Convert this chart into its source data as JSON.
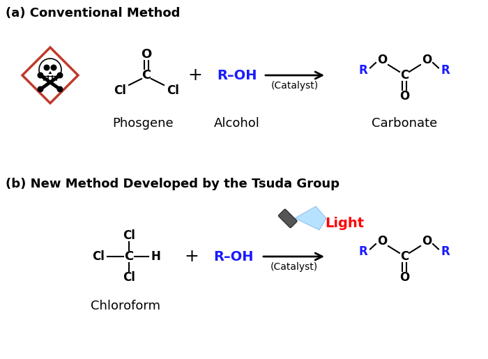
{
  "bg_color": "#ffffff",
  "title_a": "(a) Conventional Method",
  "title_b": "(b) New Method Developed by the Tsuda Group",
  "label_phosgene": "Phosgene",
  "label_alcohol": "Alcohol",
  "label_carbonate": "Carbonate",
  "label_chloroform": "Chloroform",
  "label_roh": "R–OH",
  "label_catalyst_a": "(Catalyst)",
  "label_catalyst_b": "(Catalyst)",
  "label_light": "Light",
  "black": "#000000",
  "blue": "#1a1aff",
  "red": "#ff0000",
  "red_diamond": "#c0392b",
  "figsize": [
    7.0,
    5.15
  ],
  "dpi": 100
}
